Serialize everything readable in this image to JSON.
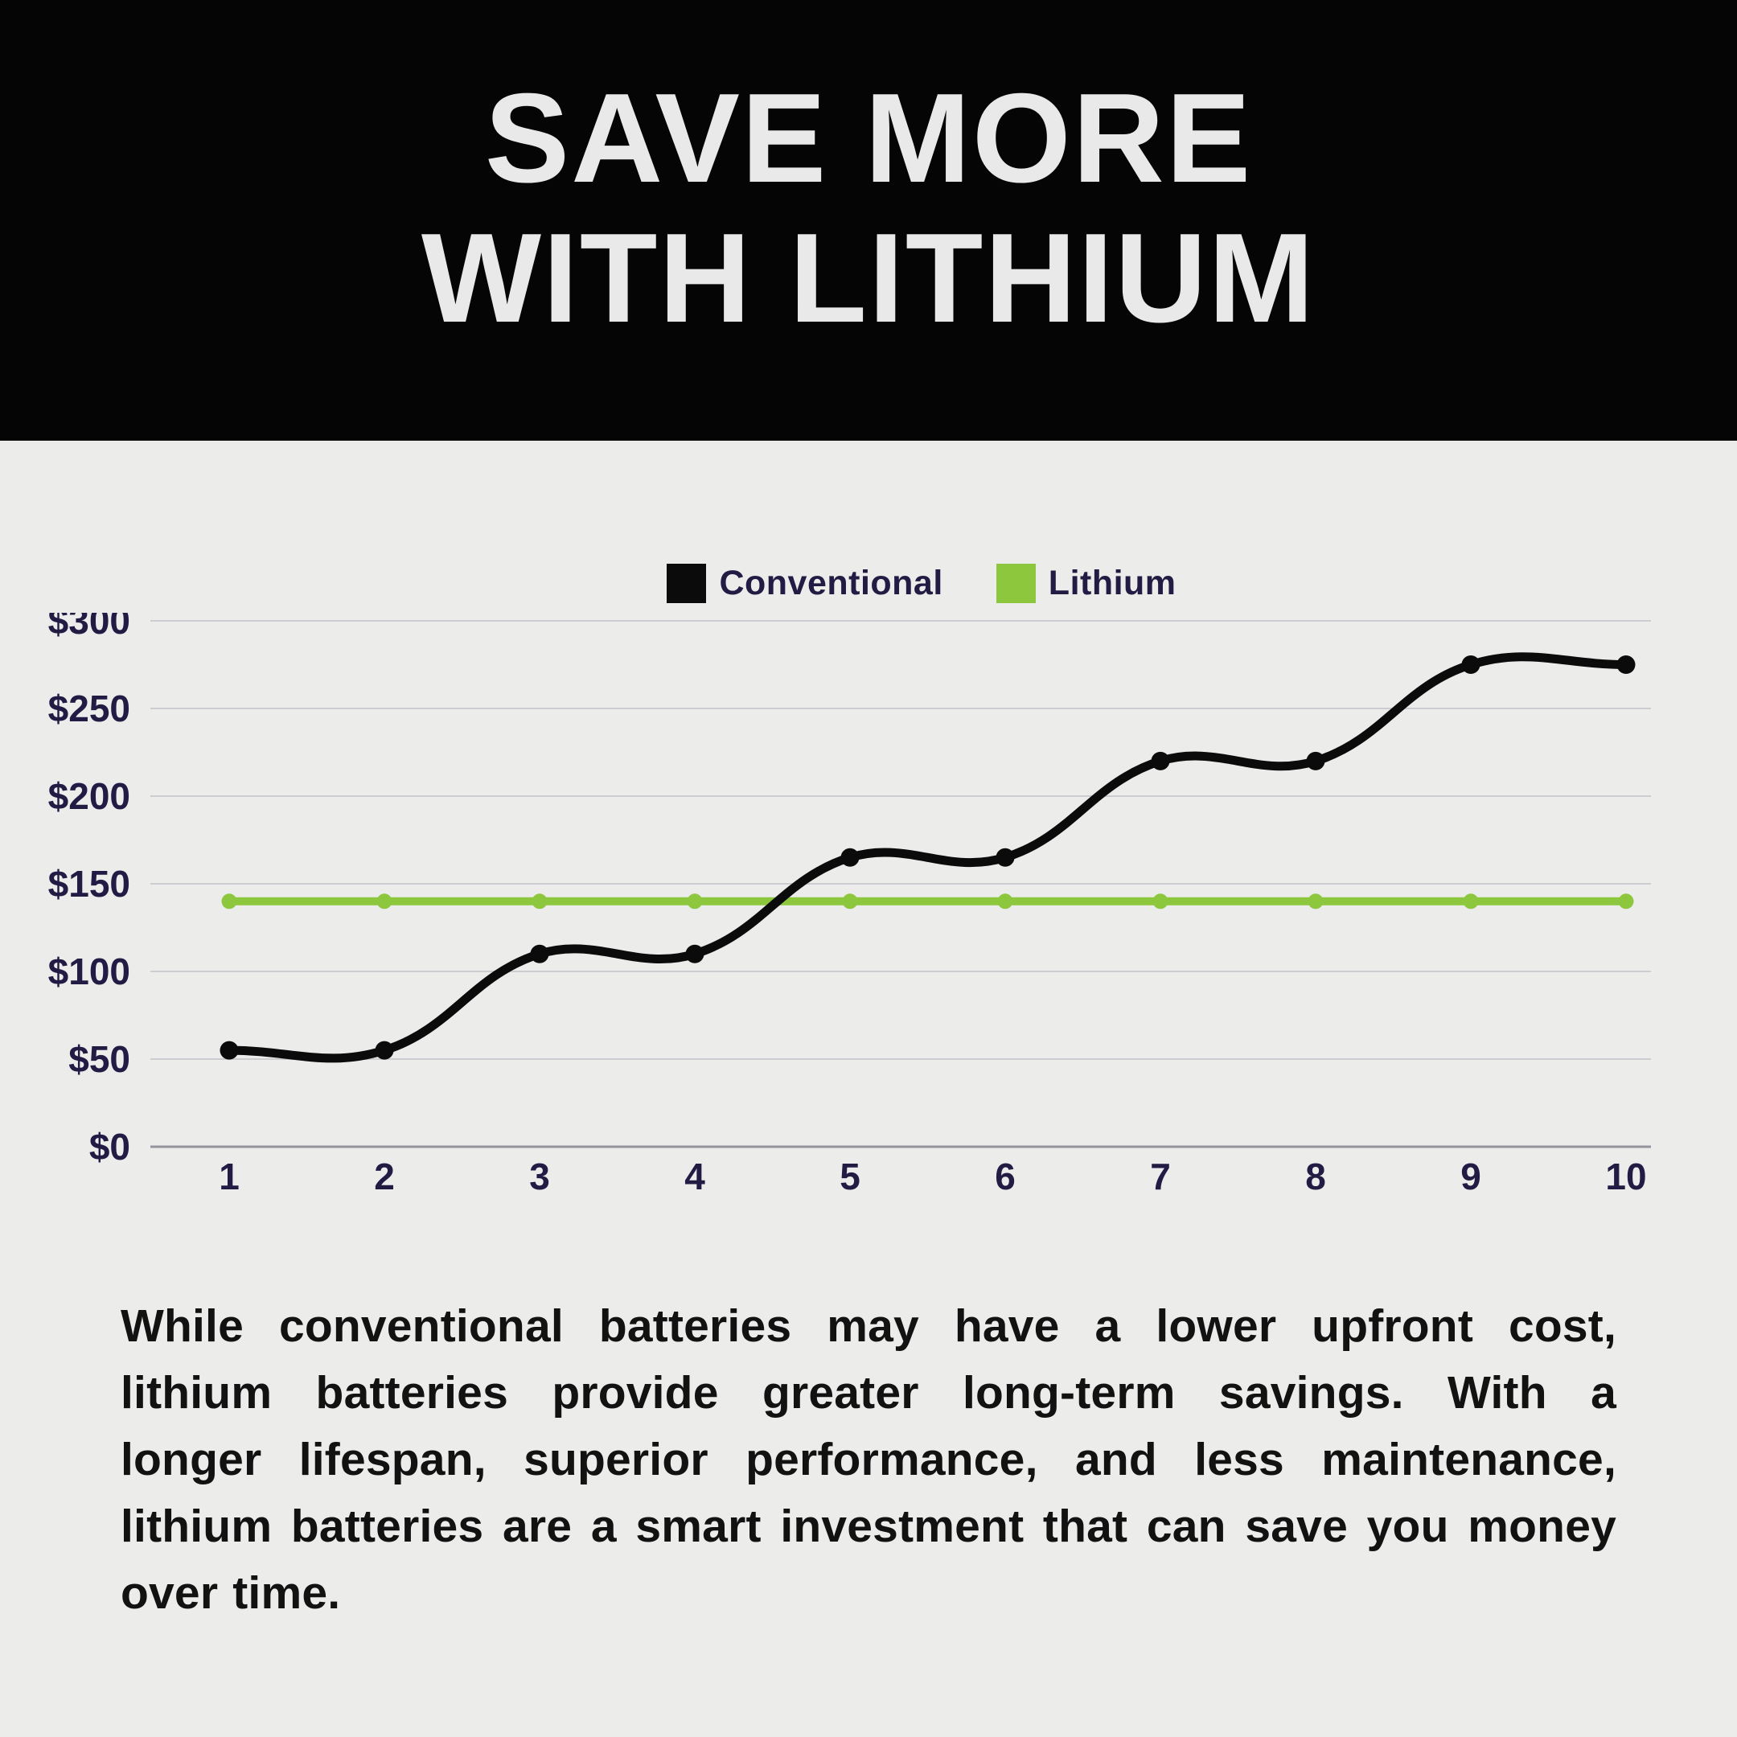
{
  "header": {
    "title_lines": [
      "SAVE MORE",
      "WITH LITHIUM"
    ]
  },
  "chart_data": {
    "type": "line",
    "title": "",
    "x": [
      1,
      2,
      3,
      4,
      5,
      6,
      7,
      8,
      9,
      10
    ],
    "xlabel": "",
    "ylabel": "",
    "ylim": [
      0,
      300
    ],
    "ytick_values": [
      0,
      50,
      100,
      150,
      200,
      250,
      300
    ],
    "ytick_labels": [
      "$0",
      "$50",
      "$100",
      "$150",
      "$200",
      "$250",
      "$300"
    ],
    "grid": "horizontal",
    "legend_position": "top",
    "line_smoothing": 0.4,
    "series": [
      {
        "name": "Conventional",
        "color": "#0B0B0B",
        "values": [
          55,
          55,
          110,
          110,
          165,
          165,
          220,
          220,
          275,
          275
        ]
      },
      {
        "name": "Lithium",
        "color": "#8CC73E",
        "values": [
          140,
          140,
          140,
          140,
          140,
          140,
          140,
          140,
          140,
          140
        ]
      }
    ]
  },
  "body": {
    "lines": [
      "While conventional batteries may have a lower upfront cost,",
      "lithium batteries provide greater long-term savings. With a",
      "longer lifespan, superior performance, and less maintenance,",
      "lithium batteries are a smart investment that can save you money",
      "over time."
    ]
  },
  "colors": {
    "header_bg": "#050505",
    "title_text": "#E9E9E9",
    "section_bg": "#ECECEB",
    "label_text": "#221C44",
    "body_text": "#121212",
    "gridline": "#CDCDD1",
    "zero_axis_line": "#94949E",
    "conventional": "#0B0B0B",
    "lithium": "#8CC73E"
  }
}
